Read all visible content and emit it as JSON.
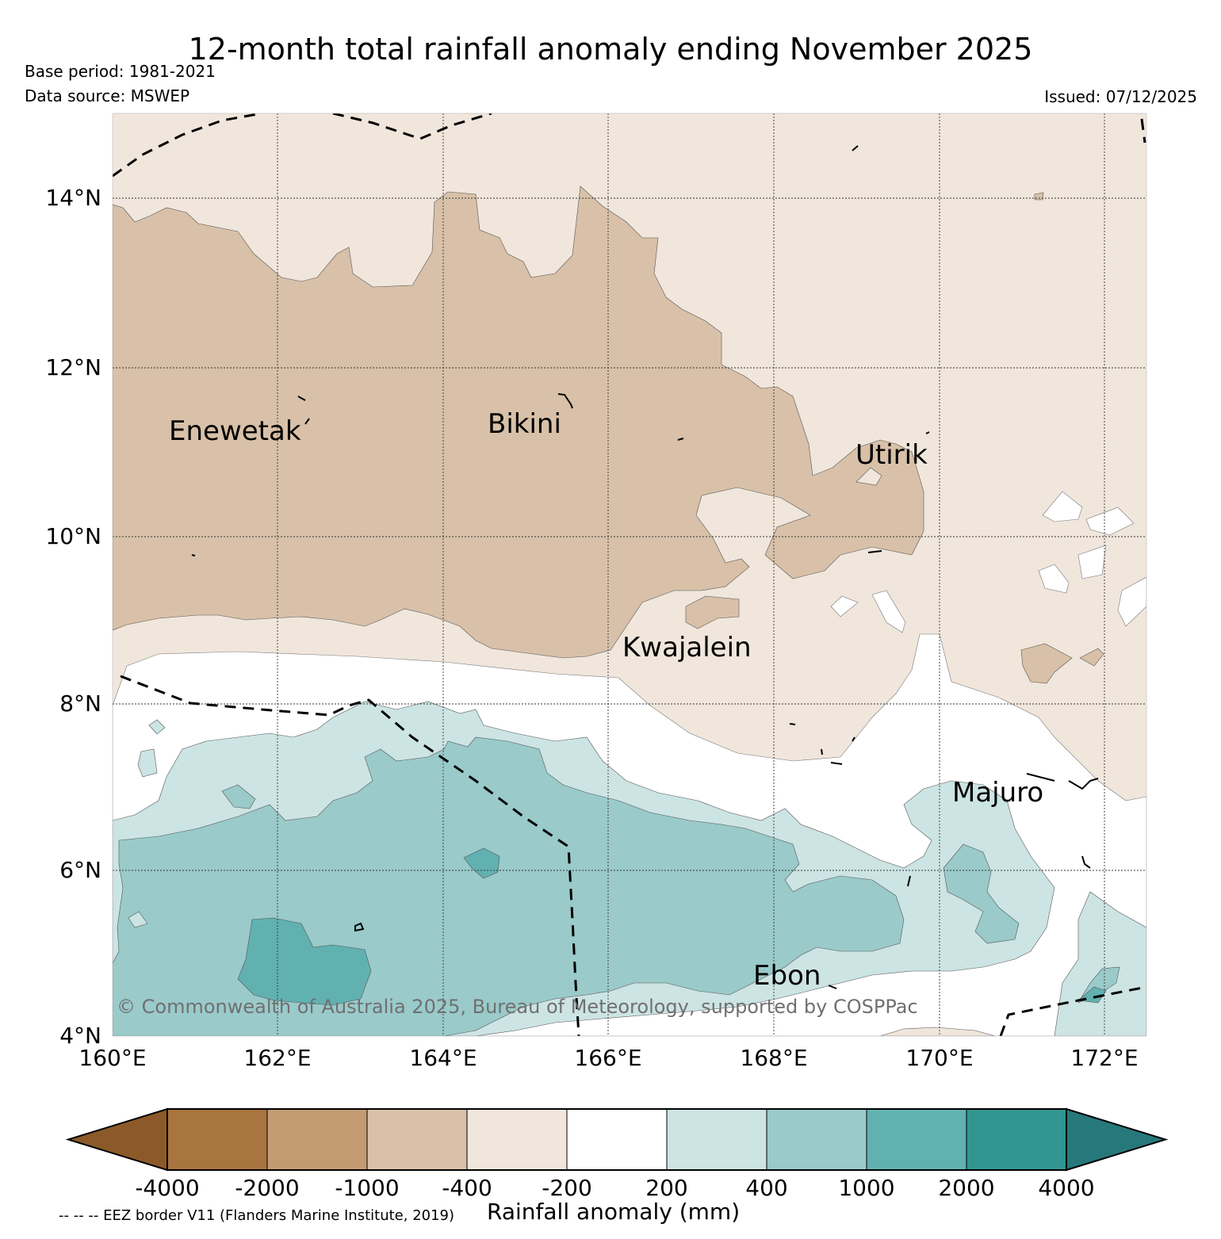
{
  "header": {
    "title": "12-month total rainfall anomaly ending November 2025",
    "base_period": "Base period: 1981-2021",
    "data_source": "Data source: MSWEP",
    "issued": "Issued: 07/12/2025"
  },
  "map": {
    "lat_labels": [
      "14°N",
      "12°N",
      "10°N",
      "8°N",
      "6°N",
      "4°N"
    ],
    "lon_labels": [
      "160°E",
      "162°E",
      "164°E",
      "166°E",
      "168°E",
      "170°E",
      "172°E"
    ],
    "places": [
      "Enewetak",
      "Bikini",
      "Utirik",
      "Kwajalein",
      "Majuro",
      "Ebon"
    ],
    "copyright": "© Commonwealth of Australia 2025, Bureau of Meteorology, supported by COSPPac",
    "extent": {
      "lon": [
        160,
        172.5
      ],
      "lat": [
        4,
        15
      ]
    }
  },
  "colorbar": {
    "title": "Rainfall anomaly (mm)",
    "tick_labels": [
      "-4000",
      "-2000",
      "-1000",
      "-400",
      "-200",
      "200",
      "400",
      "1000",
      "2000",
      "4000"
    ],
    "colors": [
      "#8c5a28",
      "#a8743f",
      "#c29b73",
      "#d8c1a8",
      "#f0e6dc",
      "#ffffff",
      "#cde4e4",
      "#9acaca",
      "#62b1b1",
      "#30968f",
      "#27787a"
    ]
  },
  "legend": {
    "eez_note": "-- -- -- EEZ border V11 (Flanders Marine Institute, 2019)"
  }
}
